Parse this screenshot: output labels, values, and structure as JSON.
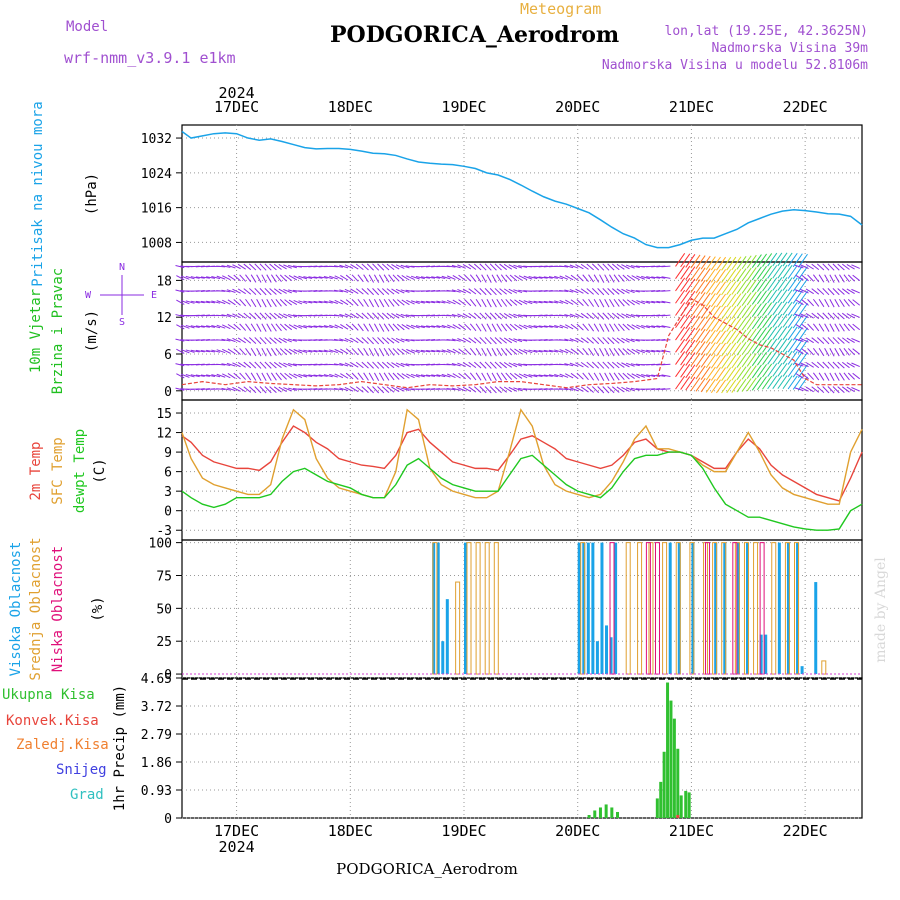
{
  "header": {
    "model_label": "Model",
    "model_name": "wrf-nmm_v3.9.1 e1km",
    "meteogram_label": "Meteogram",
    "station": "PODGORICA_Aerodrom",
    "lonlat": "lon,lat (19.25E, 42.3625N)",
    "elevation": "Nadmorska Visina 39m",
    "model_elevation": "Nadmorska Visina u modelu 52.8106m",
    "year_top": "2024"
  },
  "footer": {
    "station": "PODGORICA_Aerodrom",
    "year": "2024",
    "watermark": "made by Angel"
  },
  "colors": {
    "pressure": "#1aa3e8",
    "wind_label": "#20c020",
    "wind_barbs": "#8a2be2",
    "temp2m": "#e8453c",
    "sfc_temp": "#e0a030",
    "dewpt": "#20c820",
    "cloud_high": "#1aa3e8",
    "cloud_mid": "#e0a030",
    "cloud_low": "#e0107a",
    "precip_total": "#30c030",
    "precip_conv": "#e8453c",
    "precip_frozen": "#f08030",
    "snow": "#4040e0",
    "hail": "#30c0c0"
  },
  "time_axis": {
    "day_labels": [
      "17DEC",
      "18DEC",
      "19DEC",
      "20DEC",
      "21DEC",
      "22DEC"
    ],
    "day_values": [
      17,
      18,
      19,
      20,
      21,
      22
    ],
    "range": [
      16.52,
      22.5
    ]
  },
  "chart_data": [
    {
      "type": "line",
      "ylabel": "Pritisak na nivou mora",
      "unit": "(hPa)",
      "yticks": [
        "1032",
        "1024",
        "1016",
        "1008"
      ],
      "ytick_values": [
        1032,
        1024,
        1016,
        1008
      ],
      "ylim": [
        1003.5,
        1035
      ],
      "series": [
        {
          "x": [
            16.52,
            16.6,
            16.7,
            16.8,
            16.9,
            17.0,
            17.1,
            17.2,
            17.3,
            17.4,
            17.5,
            17.6,
            17.7,
            17.8,
            17.9,
            18.0,
            18.1,
            18.2,
            18.3,
            18.4,
            18.5,
            18.6,
            18.7,
            18.8,
            18.9,
            19.0,
            19.1,
            19.2,
            19.3,
            19.4,
            19.5,
            19.6,
            19.7,
            19.8,
            19.9,
            20.0,
            20.1,
            20.2,
            20.3,
            20.4,
            20.5,
            20.6,
            20.7,
            20.8,
            20.9,
            21.0,
            21.1,
            21.2,
            21.3,
            21.4,
            21.5,
            21.6,
            21.7,
            21.8,
            21.9,
            22.0,
            22.1,
            22.2,
            22.3,
            22.4,
            22.5
          ],
          "y": [
            1033.5,
            1032.0,
            1032.5,
            1033.0,
            1033.2,
            1033.0,
            1032.0,
            1031.5,
            1031.8,
            1031.2,
            1030.5,
            1029.8,
            1029.5,
            1029.6,
            1029.6,
            1029.4,
            1029.0,
            1028.5,
            1028.4,
            1028.0,
            1027.2,
            1026.5,
            1026.2,
            1026.0,
            1025.9,
            1025.5,
            1025.0,
            1024.0,
            1023.5,
            1022.5,
            1021.2,
            1019.8,
            1018.5,
            1017.5,
            1016.8,
            1015.8,
            1014.8,
            1013.2,
            1011.5,
            1010.0,
            1009.0,
            1007.5,
            1006.8,
            1006.8,
            1007.5,
            1008.5,
            1009.0,
            1009.0,
            1010.0,
            1011.0,
            1012.5,
            1013.5,
            1014.5,
            1015.2,
            1015.5,
            1015.3,
            1015.0,
            1014.6,
            1014.5,
            1014.0,
            1012.0
          ]
        }
      ]
    },
    {
      "type": "line",
      "ylabel": [
        "10m Vjetar",
        "Brzina i Pravac"
      ],
      "unit": "(m/s)",
      "compass": "N",
      "compass_w": "W",
      "compass_e": "E",
      "compass_s": "S",
      "yticks": [
        "18",
        "12",
        "6",
        "0"
      ],
      "ytick_values": [
        18,
        12,
        6,
        0
      ],
      "ylim": [
        -1.5,
        21
      ],
      "barb_levels": [
        0,
        2,
        4,
        6,
        8,
        10,
        12,
        14,
        16,
        18,
        20
      ],
      "series": [
        {
          "name": "wind_speed",
          "x": [
            16.52,
            16.7,
            16.9,
            17.1,
            17.3,
            17.5,
            17.7,
            17.9,
            18.1,
            18.3,
            18.5,
            18.7,
            18.9,
            19.1,
            19.3,
            19.5,
            19.7,
            19.9,
            20.1,
            20.3,
            20.5,
            20.7,
            20.8,
            20.9,
            21.0,
            21.1,
            21.2,
            21.3,
            21.4,
            21.5,
            21.6,
            21.7,
            21.8,
            21.9,
            22.0,
            22.1,
            22.3,
            22.5
          ],
          "y": [
            1.0,
            1.5,
            1.0,
            1.5,
            1.2,
            1.0,
            0.8,
            1.0,
            1.5,
            1.0,
            0.5,
            1.0,
            0.8,
            1.0,
            1.5,
            1.5,
            1.0,
            0.5,
            1.0,
            1.2,
            1.5,
            2.0,
            9.0,
            12.0,
            15.0,
            14.0,
            12.0,
            11.0,
            10.0,
            8.5,
            7.5,
            7.0,
            6.0,
            5.0,
            2.0,
            1.0,
            1.0,
            1.0
          ]
        }
      ]
    },
    {
      "type": "line",
      "ylabel": [
        "2m Temp",
        "SFC Temp",
        "dewpt Temp"
      ],
      "unit": "(C)",
      "yticks": [
        "15",
        "12",
        "9",
        "6",
        "3",
        "0",
        "-3"
      ],
      "ytick_values": [
        15,
        12,
        9,
        6,
        3,
        0,
        -3
      ],
      "ylim": [
        -4.5,
        17
      ],
      "x": [
        16.52,
        16.6,
        16.7,
        16.8,
        16.9,
        17.0,
        17.1,
        17.2,
        17.3,
        17.4,
        17.5,
        17.6,
        17.7,
        17.8,
        17.9,
        18.0,
        18.1,
        18.2,
        18.3,
        18.4,
        18.5,
        18.6,
        18.7,
        18.8,
        18.9,
        19.0,
        19.1,
        19.2,
        19.3,
        19.4,
        19.5,
        19.6,
        19.7,
        19.8,
        19.9,
        20.0,
        20.1,
        20.2,
        20.3,
        20.4,
        20.5,
        20.6,
        20.7,
        20.8,
        20.9,
        21.0,
        21.1,
        21.2,
        21.3,
        21.4,
        21.5,
        21.6,
        21.7,
        21.8,
        21.9,
        22.0,
        22.1,
        22.2,
        22.3,
        22.4,
        22.5
      ],
      "series": [
        {
          "name": "2m Temp",
          "y": [
            11.5,
            10.5,
            8.5,
            7.5,
            7.0,
            6.5,
            6.5,
            6.2,
            7.5,
            10.5,
            13.0,
            12.0,
            10.5,
            9.5,
            8.0,
            7.5,
            7.0,
            6.8,
            6.5,
            8.5,
            12.0,
            12.5,
            10.5,
            9.0,
            7.5,
            7.0,
            6.5,
            6.5,
            6.2,
            8.5,
            11.0,
            11.5,
            10.5,
            9.5,
            8.0,
            7.5,
            7.0,
            6.5,
            7.0,
            8.5,
            10.5,
            11.0,
            9.5,
            9.0,
            9.0,
            8.5,
            7.5,
            6.5,
            6.5,
            9.0,
            11.0,
            9.5,
            7.0,
            5.5,
            4.5,
            3.5,
            2.5,
            2.0,
            1.5,
            5.0,
            9.0
          ]
        },
        {
          "name": "SFC Temp",
          "y": [
            12.0,
            8.0,
            5.0,
            4.0,
            3.5,
            3.0,
            2.5,
            2.5,
            4.0,
            11.0,
            15.5,
            14.0,
            8.0,
            5.0,
            3.5,
            3.0,
            2.5,
            2.0,
            2.0,
            6.0,
            15.5,
            14.0,
            6.5,
            4.0,
            3.0,
            2.5,
            2.0,
            2.0,
            3.0,
            9.0,
            15.5,
            13.0,
            7.0,
            4.0,
            3.0,
            2.5,
            2.0,
            2.5,
            4.5,
            7.5,
            11.0,
            13.0,
            9.5,
            9.5,
            9.0,
            8.5,
            7.0,
            6.0,
            6.0,
            9.0,
            12.0,
            9.0,
            5.5,
            3.5,
            2.5,
            2.0,
            1.5,
            1.0,
            1.0,
            9.0,
            12.5
          ]
        },
        {
          "name": "dewpt Temp",
          "y": [
            3.0,
            2.0,
            1.0,
            0.5,
            1.0,
            2.0,
            2.0,
            2.0,
            2.5,
            4.5,
            6.0,
            6.5,
            5.5,
            4.5,
            4.0,
            3.5,
            2.5,
            2.0,
            2.0,
            4.0,
            7.0,
            8.0,
            6.5,
            5.0,
            4.0,
            3.5,
            3.0,
            3.0,
            3.0,
            5.5,
            8.0,
            8.5,
            7.0,
            5.5,
            4.0,
            3.0,
            2.5,
            2.0,
            3.5,
            6.0,
            8.0,
            8.5,
            8.5,
            9.0,
            9.0,
            8.5,
            6.5,
            3.5,
            1.0,
            0.0,
            -1.0,
            -1.0,
            -1.5,
            -2.0,
            -2.5,
            -2.8,
            -3.0,
            -3.0,
            -2.8,
            0.0,
            1.0
          ]
        }
      ]
    },
    {
      "type": "bar",
      "ylabel": [
        "Visoka Oblacnost",
        "Srednja Oblacnost",
        "Niska Oblacnost"
      ],
      "unit": "(%)",
      "yticks": [
        "100",
        "75",
        "50",
        "25",
        "0"
      ],
      "ytick_values": [
        100,
        75,
        50,
        25,
        0
      ],
      "ylim": [
        0,
        100
      ],
      "series": [
        {
          "name": "Visoka Oblacnost",
          "x": [
            18.72,
            18.76,
            18.8,
            18.84,
            19.0,
            20.0,
            20.04,
            20.08,
            20.12,
            20.16,
            20.2,
            20.24,
            20.28,
            20.32,
            20.8,
            20.88,
            21.0,
            21.2,
            21.28,
            21.4,
            21.48,
            21.6,
            21.64,
            21.76,
            21.84,
            21.92,
            21.96,
            22.08
          ],
          "y": [
            100,
            100,
            25,
            57,
            100,
            100,
            100,
            100,
            100,
            25,
            100,
            37,
            28,
            100,
            100,
            100,
            100,
            100,
            100,
            100,
            100,
            30,
            30,
            100,
            100,
            100,
            6,
            70
          ]
        },
        {
          "name": "Srednja Oblacnost",
          "x": [
            18.7,
            18.9,
            19.0,
            19.08,
            19.16,
            19.24,
            20.0,
            20.4,
            20.5,
            20.6,
            20.72,
            20.84,
            20.96,
            21.08,
            21.16,
            21.24,
            21.36,
            21.44,
            21.52,
            21.68,
            21.8,
            21.88,
            22.12
          ],
          "y": [
            100,
            70,
            100,
            100,
            100,
            100,
            100,
            100,
            100,
            100,
            100,
            100,
            100,
            100,
            100,
            100,
            100,
            100,
            100,
            100,
            100,
            100,
            10
          ]
        },
        {
          "name": "Niska Oblacnost",
          "x": [
            20.24,
            20.56,
            20.64,
            21.08,
            21.32,
            21.56
          ],
          "y": [
            100,
            100,
            100,
            100,
            100,
            100
          ]
        }
      ]
    },
    {
      "type": "bar",
      "legend": [
        "Ukupna Kisa",
        "Konvek.Kisa",
        "Zaledj.Kisa",
        "Snijeg",
        "Grad"
      ],
      "ylabel": "1hr Precip (mm)",
      "yticks": [
        "4.65",
        "3.72",
        "2.79",
        "1.86",
        "0.93",
        "0"
      ],
      "ytick_values": [
        4.65,
        3.72,
        2.79,
        1.86,
        0.93,
        0
      ],
      "ylim": [
        0,
        4.65
      ],
      "series": [
        {
          "name": "Ukupna Kisa",
          "x": [
            20.1,
            20.15,
            20.2,
            20.25,
            20.3,
            20.35,
            20.7,
            20.73,
            20.76,
            20.79,
            20.82,
            20.85,
            20.88,
            20.91,
            20.95,
            20.98
          ],
          "y": [
            0.1,
            0.25,
            0.35,
            0.45,
            0.35,
            0.2,
            0.65,
            1.2,
            2.2,
            4.5,
            3.9,
            3.3,
            2.3,
            0.75,
            0.9,
            0.85
          ]
        },
        {
          "name": "Konvek.Kisa",
          "x": [
            20.88
          ],
          "y": [
            0.1
          ]
        }
      ]
    }
  ]
}
